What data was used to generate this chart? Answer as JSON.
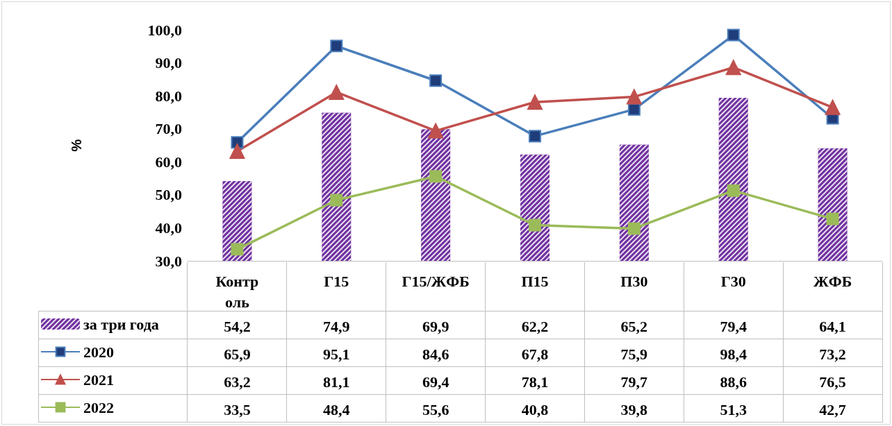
{
  "chart_data": {
    "type": "line",
    "ylabel": "%",
    "categories": [
      "Контроль",
      "Г15",
      "Г15/ЖФБ",
      "П15",
      "П30",
      "Г30",
      "ЖФБ"
    ],
    "series": [
      {
        "name": "за три года",
        "type": "bar",
        "color": "#7030a0",
        "values": [
          54.2,
          74.9,
          69.9,
          62.2,
          65.2,
          79.4,
          64.1
        ],
        "value_labels": [
          "54,2",
          "74,9",
          "69,9",
          "62,2",
          "65,2",
          "79,4",
          "64,1"
        ]
      },
      {
        "name": "2020",
        "color": "#4a7ebb",
        "marker": "square",
        "values": [
          65.9,
          95.1,
          84.6,
          67.8,
          75.9,
          98.4,
          73.2
        ],
        "value_labels": [
          "65,9",
          "95,1",
          "84,6",
          "67,8",
          "75,9",
          "98,4",
          "73,2"
        ]
      },
      {
        "name": "2021",
        "color": "#c0504d",
        "marker": "triangle",
        "values": [
          63.2,
          81.1,
          69.4,
          78.1,
          79.7,
          88.6,
          76.5
        ],
        "value_labels": [
          "63,2",
          "81,1",
          "69,4",
          "78,1",
          "79,7",
          "88,6",
          "76,5"
        ]
      },
      {
        "name": "2022",
        "color": "#9bbb59",
        "marker": "square",
        "values": [
          33.5,
          48.4,
          55.6,
          40.8,
          39.8,
          51.3,
          42.7
        ],
        "value_labels": [
          "33,5",
          "48,4",
          "55,6",
          "40,8",
          "39,8",
          "51,3",
          "42,7"
        ]
      }
    ],
    "ylim": [
      30,
      100
    ],
    "yticks": [
      {
        "value": 30,
        "label": "30,0"
      },
      {
        "value": 40,
        "label": "40,0"
      },
      {
        "value": 50,
        "label": "50,0"
      },
      {
        "value": 60,
        "label": "60,0"
      },
      {
        "value": 70,
        "label": "70,0"
      },
      {
        "value": 80,
        "label": "80,0"
      },
      {
        "value": 90,
        "label": "90,0"
      },
      {
        "value": 100,
        "label": "100,0"
      }
    ],
    "grid": false,
    "legend": "bottom"
  }
}
